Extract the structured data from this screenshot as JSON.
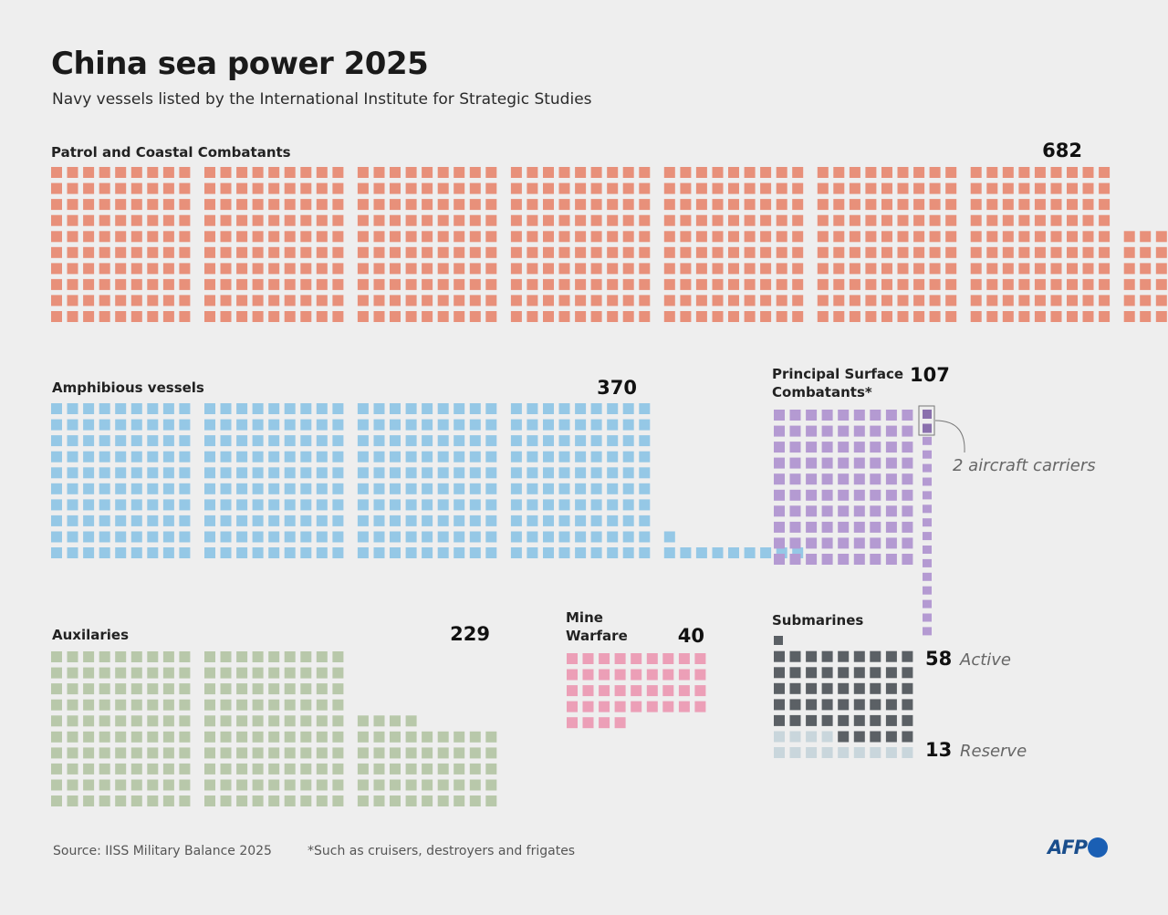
{
  "title": "China sea power 2025",
  "subtitle": "Navy vessels listed by the International Institute for Strategic Studies",
  "chart_data": {
    "type": "waffle",
    "title": "China sea power 2025",
    "subtitle": "Navy vessels listed by the International Institute for Strategic Studies",
    "unit": "one square = one vessel",
    "categories": [
      {
        "id": "patrol",
        "name": "Patrol and Coastal Combatants",
        "value": 682,
        "color": "#e8907a"
      },
      {
        "id": "amphibious",
        "name": "Amphibious vessels",
        "value": 370,
        "color": "#95c8e6"
      },
      {
        "id": "principal",
        "name": "Principal Surface Combatants*",
        "name_lines": [
          "Principal Surface",
          "Combatants*"
        ],
        "value": 107,
        "color": "#b49ad2",
        "highlight": {
          "value": 2,
          "label": "2 aircraft carriers",
          "color": "#8a70ad"
        }
      },
      {
        "id": "auxiliaries",
        "name": "Auxilaries",
        "value": 229,
        "color": "#b8c8aa"
      },
      {
        "id": "mine",
        "name": "Mine Warfare",
        "name_lines": [
          "Mine",
          "Warfare"
        ],
        "value": 40,
        "color": "#ec9fb7"
      },
      {
        "id": "submarines",
        "name": "Submarines",
        "series": [
          {
            "name": "Active",
            "value": 58,
            "color": "#5b6065"
          },
          {
            "name": "Reserve",
            "value": 13,
            "color": "#c9d6dc"
          }
        ]
      }
    ]
  },
  "footer": {
    "source": "Source: IISS Military Balance  2025",
    "footnote": "*Such as cruisers, destroyers and frigates",
    "logo": "AFP"
  }
}
